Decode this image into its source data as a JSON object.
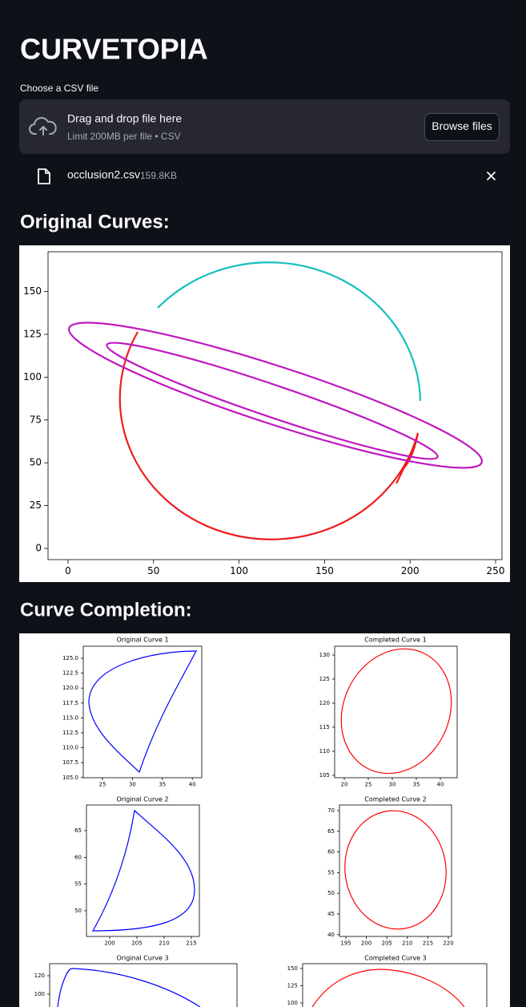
{
  "header": {
    "title": "CURVETOPIA"
  },
  "uploader": {
    "label": "Choose a CSV file",
    "drop_text": "Drag and drop file here",
    "limit_text": "Limit 200MB per file • CSV",
    "button": "Browse files"
  },
  "file": {
    "name": "occlusion2.csv",
    "size": "159.8KB"
  },
  "sections": [
    {
      "heading": "Original Curves:"
    },
    {
      "heading": "Curve Completion:"
    }
  ],
  "plots": [
    {
      "xticks": [
        "0",
        "50",
        "100",
        "150",
        "200",
        "250"
      ],
      "yticks": [
        "0",
        "25",
        "50",
        "75",
        "100",
        "125",
        "150"
      ]
    },
    {
      "title": "Original Curve 1",
      "xticks": [
        "25",
        "30",
        "35",
        "40"
      ],
      "yticks": [
        "125.0",
        "122.5",
        "120.0",
        "117.5",
        "115.0",
        "112.5",
        "110.0",
        "107.5",
        "105.0"
      ]
    },
    {
      "title": "Completed Curve 1",
      "xticks": [
        "20",
        "25",
        "30",
        "35",
        "40"
      ],
      "yticks": [
        "130",
        "125",
        "120",
        "115",
        "110",
        "105"
      ]
    },
    {
      "title": "Original Curve 2",
      "xticks": [
        "200",
        "205",
        "210",
        "215"
      ],
      "yticks": [
        "65",
        "60",
        "55",
        "50"
      ]
    },
    {
      "title": "Completed Curve 2",
      "xticks": [
        "195",
        "200",
        "205",
        "210",
        "215",
        "220"
      ],
      "yticks": [
        "70",
        "65",
        "60",
        "55",
        "50",
        "45",
        "40"
      ]
    },
    {
      "title": "Original Curve 3",
      "yticks": [
        "120",
        "100"
      ]
    },
    {
      "title": "Completed Curve 3",
      "yticks": [
        "150",
        "125",
        "100"
      ]
    }
  ]
}
